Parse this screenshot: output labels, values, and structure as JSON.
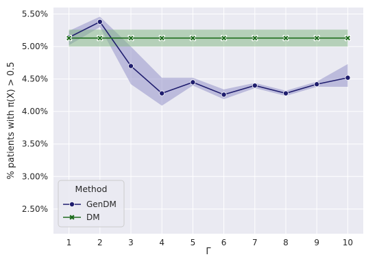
{
  "chart_data": {
    "type": "line",
    "xlabel": "Γ",
    "ylabel": "% patients with π(X) > 0.5",
    "xlim": [
      0.5,
      10.5
    ],
    "ylim": [
      2.12,
      5.6
    ],
    "x": [
      1,
      2,
      3,
      4,
      5,
      6,
      7,
      8,
      9,
      10
    ],
    "x_ticks": [
      "1",
      "2",
      "3",
      "4",
      "5",
      "6",
      "7",
      "8",
      "9",
      "10"
    ],
    "y_ticks": [
      2.5,
      3.0,
      3.5,
      4.0,
      4.5,
      5.0,
      5.5
    ],
    "y_tick_labels": [
      "2.50%",
      "3.00%",
      "3.50%",
      "4.00%",
      "4.50%",
      "5.00%",
      "5.50%"
    ],
    "grid": true,
    "legend": {
      "title": "Method",
      "placement": "lower-left"
    },
    "series": [
      {
        "name": "GenDM",
        "marker": "circle",
        "color": "#1f1d6e",
        "band_color": "#8e8cc6",
        "values": [
          5.14,
          5.38,
          4.7,
          4.28,
          4.45,
          4.26,
          4.4,
          4.28,
          4.42,
          4.52
        ],
        "lower": [
          5.02,
          5.3,
          4.42,
          4.09,
          4.4,
          4.19,
          4.36,
          4.24,
          4.38,
          4.38
        ],
        "upper": [
          5.24,
          5.46,
          5.0,
          4.52,
          4.52,
          4.34,
          4.44,
          4.32,
          4.46,
          4.73
        ]
      },
      {
        "name": "DM",
        "marker": "x",
        "color": "#1c6b1c",
        "band_color": "#7fb57f",
        "values": [
          5.13,
          5.13,
          5.13,
          5.13,
          5.13,
          5.13,
          5.13,
          5.13,
          5.13,
          5.13
        ],
        "lower": [
          5.0,
          5.0,
          5.0,
          5.0,
          5.0,
          5.0,
          5.0,
          5.0,
          5.0,
          5.0
        ],
        "upper": [
          5.26,
          5.26,
          5.26,
          5.26,
          5.26,
          5.26,
          5.26,
          5.26,
          5.26,
          5.26
        ]
      }
    ]
  }
}
